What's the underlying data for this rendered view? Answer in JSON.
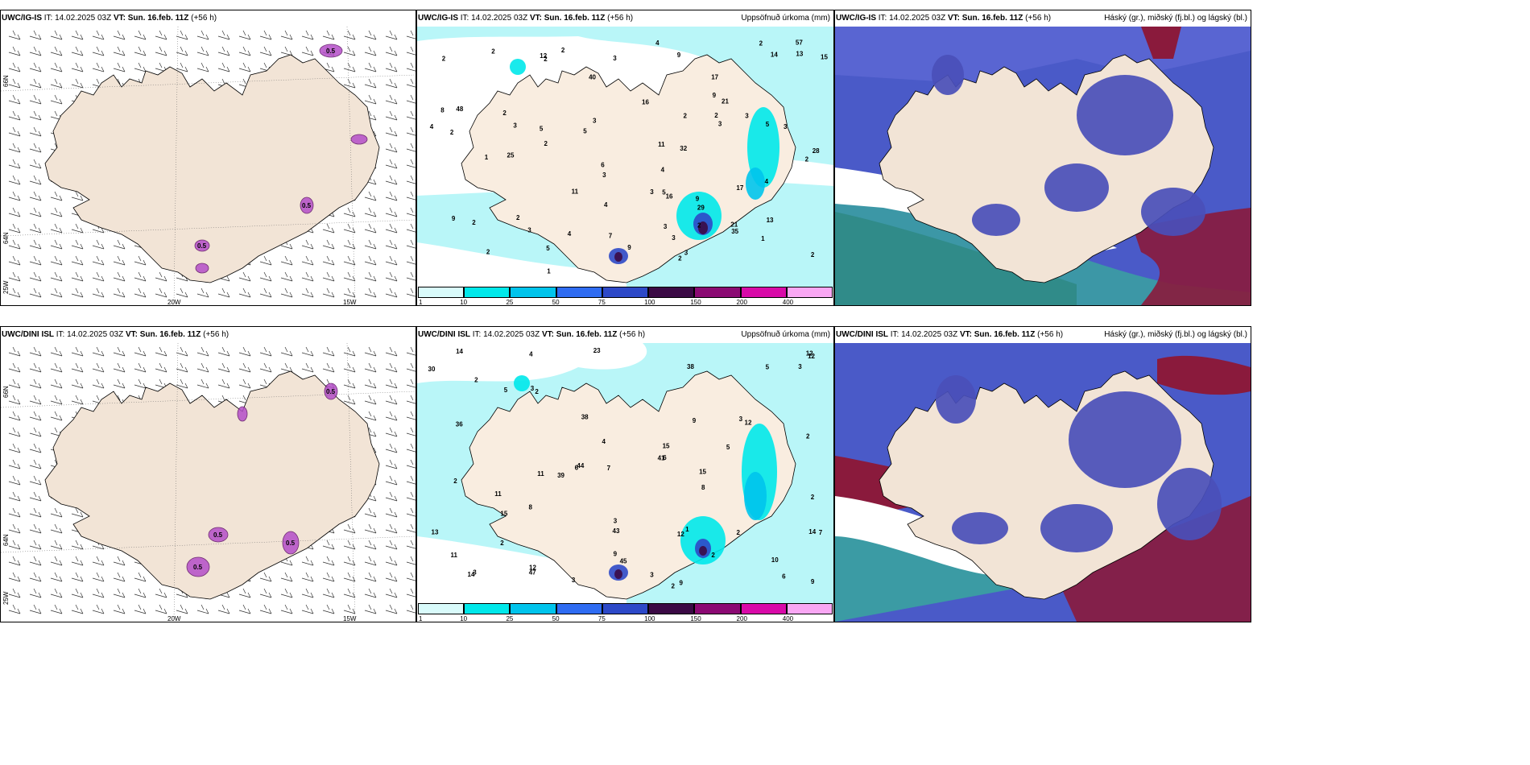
{
  "panels": {
    "tl": {
      "model": "UWC/IG-IS",
      "it": "IT: 14.02.2025 03Z",
      "vt_label": "VT:",
      "vt": "Sun. 16.feb. 11Z",
      "lead": "(+56 h)"
    },
    "tm": {
      "model": "UWC/IG-IS",
      "it": "IT: 14.02.2025 03Z",
      "vt_label": "VT:",
      "vt": "Sun. 16.feb. 11Z",
      "lead": "(+56 h)",
      "right_title": "Uppsöfnuð úrkoma (mm)"
    },
    "tr": {
      "model": "UWC/IG-IS",
      "it": "IT: 14.02.2025 03Z",
      "vt_label": "VT:",
      "vt": "Sun. 16.feb. 11Z",
      "lead": "(+56 h)",
      "right_title": "Háský (gr.), miðský (fj.bl.) og lágský (bl.)"
    },
    "bl": {
      "model": "UWC/DINI ISL",
      "it": "IT: 14.02.2025 03Z",
      "vt_label": "VT:",
      "vt": "Sun. 16.feb. 11Z",
      "lead": "(+56 h)"
    },
    "bm": {
      "model": "UWC/DINI ISL",
      "it": "IT: 14.02.2025 03Z",
      "vt_label": "VT:",
      "vt": "Sun. 16.feb. 11Z",
      "lead": "(+56 h)",
      "right_title": "Uppsöfnuð úrkoma (mm)"
    },
    "br": {
      "model": "UWC/DINI ISL",
      "it": "IT: 14.02.2025 03Z",
      "vt_label": "VT:",
      "vt": "Sun. 16.feb. 11Z",
      "lead": "(+56 h)",
      "right_title": "Háský (gr.), miðský (fj.bl.) og lágský (bl.)"
    }
  },
  "axis_labels": {
    "lat66": "66N",
    "lat64": "64N",
    "lon25": "25W",
    "lon20": "20W",
    "lon15": "15W"
  },
  "precip_legend": {
    "ticks": [
      "1",
      "10",
      "25",
      "50",
      "75",
      "100",
      "150",
      "200",
      "400"
    ],
    "colors": [
      "#d9fbfb",
      "#00e8ea",
      "#00c4ec",
      "#2f6cf2",
      "#2d49c8",
      "#3b0a45",
      "#8b0a73",
      "#d80aa8",
      "#f9a7f3"
    ]
  },
  "precip_labels": {
    "top": [
      "3",
      "2",
      "2",
      "2",
      "3",
      "3",
      "2",
      "2",
      "3",
      "3",
      "2",
      "8",
      "6",
      "5",
      "3",
      "2",
      "2",
      "14",
      "17",
      "5",
      "21",
      "16",
      "5",
      "35",
      "32",
      "21",
      "25",
      "3",
      "9",
      "40",
      "29",
      "57",
      "17",
      "4",
      "2",
      "7",
      "4",
      "48",
      "28",
      "9",
      "3",
      "11",
      "15",
      "13",
      "9",
      "4",
      "3",
      "4",
      "4",
      "13",
      "11",
      "16",
      "5",
      "9",
      "2",
      "2",
      "1",
      "3",
      "1",
      "9",
      "4",
      "2",
      "2",
      "1",
      "12",
      "2",
      "2",
      "3",
      "2",
      "5",
      "3",
      "2"
    ],
    "bottom": [
      "3",
      "2",
      "12",
      "2",
      "4",
      "2",
      "11",
      "6",
      "23",
      "38",
      "5",
      "45",
      "44",
      "43",
      "38",
      "41",
      "36",
      "47",
      "39",
      "30",
      "12",
      "12",
      "15",
      "14",
      "12",
      "11",
      "13",
      "15",
      "14",
      "8",
      "7",
      "9",
      "3",
      "3",
      "2",
      "15",
      "14",
      "11",
      "9",
      "10",
      "6",
      "5",
      "7",
      "3",
      "2",
      "1",
      "2",
      "3",
      "5",
      "9",
      "12",
      "2",
      "9",
      "2",
      "8",
      "3",
      "6",
      "4",
      "3",
      "2"
    ]
  },
  "wind_marker_labels": {
    "top": [
      "0.5",
      "0.5",
      "0.5"
    ],
    "bottom": [
      "0.5",
      "0.5",
      "0.5",
      "0.5"
    ]
  }
}
